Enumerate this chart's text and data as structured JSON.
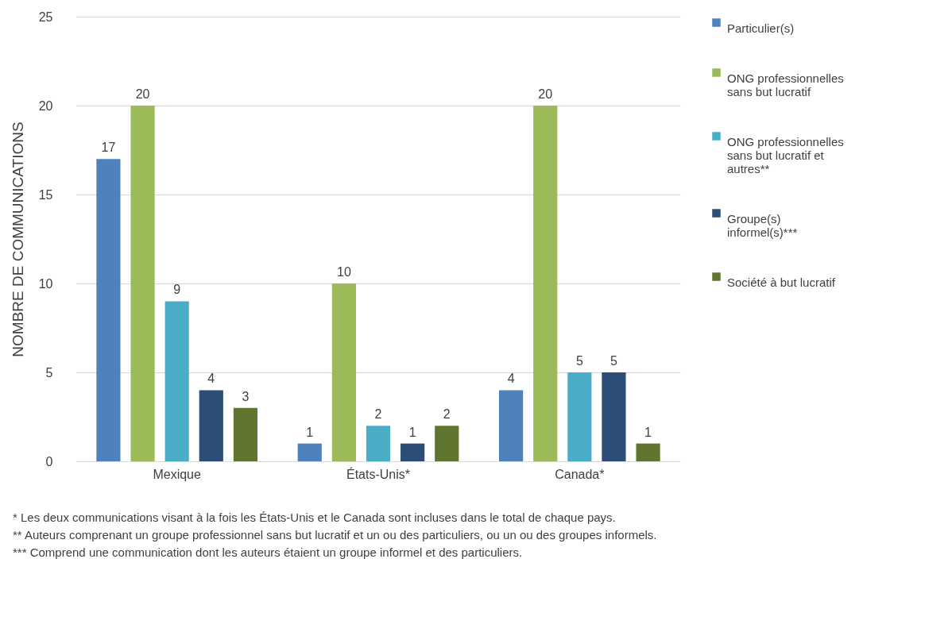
{
  "chart_data": {
    "type": "bar",
    "ylabel": "NOMBRE DE COMMUNICATIONS",
    "categories": [
      "Mexique",
      "États-Unis*",
      "Canada*"
    ],
    "series": [
      {
        "name": "Particulier(s)",
        "color": "#4f81bd",
        "values": [
          17,
          1,
          4
        ]
      },
      {
        "name": "ONG professionnelles sans but lucratif",
        "color": "#9bbb59",
        "values": [
          20,
          10,
          20
        ]
      },
      {
        "name": "ONG professionnelles sans but lucratif et autres**",
        "color": "#4bacc6",
        "values": [
          9,
          2,
          5
        ]
      },
      {
        "name": "Groupe(s) informel(s)***",
        "color": "#2c4d75",
        "values": [
          4,
          1,
          5
        ]
      },
      {
        "name": "Société à but lucratif",
        "color": "#5f7530",
        "values": [
          3,
          2,
          1
        ]
      }
    ],
    "ylim": [
      0,
      25
    ],
    "yticks": [
      0,
      5,
      10,
      15,
      20,
      25
    ],
    "grid": "y",
    "legend": "right",
    "data_labels": true,
    "annotations": [
      "* Les deux communications visant à la fois les États-Unis et le Canada sont incluses dans le total de chaque pays.",
      "** Auteurs comprenant un groupe professionnel sans but lucratif et un ou des particuliers, ou un ou des groupes informels.",
      "*** Comprend une communication dont les auteurs étaient un groupe informel et des particuliers."
    ]
  }
}
